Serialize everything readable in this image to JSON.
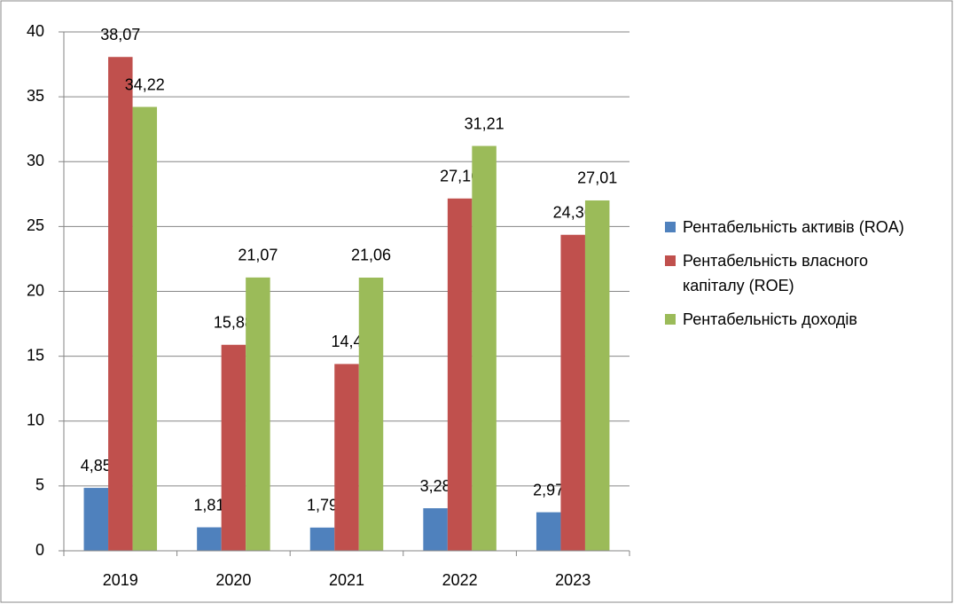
{
  "chart_data": {
    "type": "bar",
    "categories": [
      "2019",
      "2020",
      "2021",
      "2022",
      "2023"
    ],
    "series": [
      {
        "name": "Рентабельність активів (ROA)",
        "color": "#4f81bd",
        "values": [
          4.85,
          1.81,
          1.79,
          3.28,
          2.97
        ],
        "value_labels": [
          "4,85",
          "1,81",
          "1,79",
          "3,28",
          "2,97"
        ]
      },
      {
        "name": "Рентабельність власного капіталу (ROE)",
        "color": "#c0504d",
        "values": [
          38.07,
          15.88,
          14.4,
          27.16,
          24.36
        ],
        "value_labels": [
          "38,07",
          "15,88",
          "14,4",
          "27,16",
          "24,36"
        ]
      },
      {
        "name": "Рентабельність доходів",
        "color": "#9bbb59",
        "values": [
          34.22,
          21.07,
          21.06,
          31.21,
          27.01
        ],
        "value_labels": [
          "34,22",
          "21,07",
          "21,06",
          "31,21",
          "27,01"
        ]
      }
    ],
    "ylim": [
      0,
      40
    ],
    "yticks": [
      0,
      5,
      10,
      15,
      20,
      25,
      30,
      35,
      40
    ],
    "grid": true,
    "legend": "right"
  }
}
